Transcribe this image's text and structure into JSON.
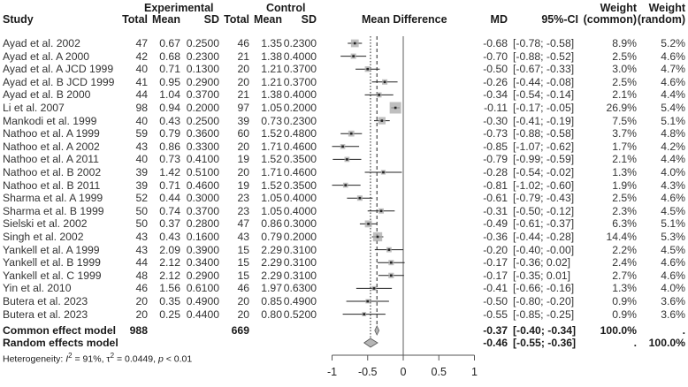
{
  "headers": {
    "study": "Study",
    "experimental": "Experimental",
    "control": "Control",
    "total": "Total",
    "mean": "Mean",
    "sd": "SD",
    "plot": "Mean Difference",
    "md": "MD",
    "ci": "95%-CI",
    "weight": "Weight",
    "weight_common": "(common)",
    "weight_random": "(random)"
  },
  "studies": [
    {
      "study": "Ayad et al. 2002",
      "e_total": "47",
      "e_mean": "0.67",
      "e_sd": "0.2500",
      "c_total": "46",
      "c_mean": "1.35",
      "c_sd": "0.2300",
      "md": "-0.68",
      "ci": "[-0.78; -0.58]",
      "w_common": "8.9%",
      "w_random": "5.2%"
    },
    {
      "study": "Ayad et al. A 2000",
      "e_total": "42",
      "e_mean": "0.68",
      "e_sd": "0.2300",
      "c_total": "21",
      "c_mean": "1.38",
      "c_sd": "0.4000",
      "md": "-0.70",
      "ci": "[-0.88; -0.52]",
      "w_common": "2.5%",
      "w_random": "4.6%"
    },
    {
      "study": "Ayad et al. A JCD 1999",
      "e_total": "40",
      "e_mean": "0.71",
      "e_sd": "0.1300",
      "c_total": "20",
      "c_mean": "1.21",
      "c_sd": "0.3700",
      "md": "-0.50",
      "ci": "[-0.67; -0.33]",
      "w_common": "3.0%",
      "w_random": "4.7%"
    },
    {
      "study": "Ayad et al. B JCD 1999",
      "e_total": "41",
      "e_mean": "0.95",
      "e_sd": "0.2900",
      "c_total": "20",
      "c_mean": "1.21",
      "c_sd": "0.3700",
      "md": "-0.26",
      "ci": "[-0.44; -0.08]",
      "w_common": "2.5%",
      "w_random": "4.6%"
    },
    {
      "study": "Ayad et al. B 2000",
      "e_total": "44",
      "e_mean": "1.04",
      "e_sd": "0.3700",
      "c_total": "21",
      "c_mean": "1.38",
      "c_sd": "0.4000",
      "md": "-0.34",
      "ci": "[-0.54; -0.14]",
      "w_common": "2.1%",
      "w_random": "4.4%"
    },
    {
      "study": "Li et al. 2007",
      "e_total": "98",
      "e_mean": "0.94",
      "e_sd": "0.2000",
      "c_total": "97",
      "c_mean": "1.05",
      "c_sd": "0.2000",
      "md": "-0.11",
      "ci": "[-0.17; -0.05]",
      "w_common": "26.9%",
      "w_random": "5.4%"
    },
    {
      "study": "Mankodi et al. 1999",
      "e_total": "40",
      "e_mean": "0.43",
      "e_sd": "0.2500",
      "c_total": "39",
      "c_mean": "0.73",
      "c_sd": "0.2300",
      "md": "-0.30",
      "ci": "[-0.41; -0.19]",
      "w_common": "7.5%",
      "w_random": "5.1%"
    },
    {
      "study": "Nathoo et al. A 1999",
      "e_total": "59",
      "e_mean": "0.79",
      "e_sd": "0.3600",
      "c_total": "60",
      "c_mean": "1.52",
      "c_sd": "0.4800",
      "md": "-0.73",
      "ci": "[-0.88; -0.58]",
      "w_common": "3.7%",
      "w_random": "4.8%"
    },
    {
      "study": "Nathoo et al. A 2002",
      "e_total": "43",
      "e_mean": "0.86",
      "e_sd": "0.3300",
      "c_total": "20",
      "c_mean": "1.71",
      "c_sd": "0.4600",
      "md": "-0.85",
      "ci": "[-1.07; -0.62]",
      "w_common": "1.7%",
      "w_random": "4.2%"
    },
    {
      "study": "Nathoo et al. A 2011",
      "e_total": "40",
      "e_mean": "0.73",
      "e_sd": "0.4100",
      "c_total": "19",
      "c_mean": "1.52",
      "c_sd": "0.3500",
      "md": "-0.79",
      "ci": "[-0.99; -0.59]",
      "w_common": "2.1%",
      "w_random": "4.4%"
    },
    {
      "study": "Nathoo et al. B 2002",
      "e_total": "39",
      "e_mean": "1.42",
      "e_sd": "0.5100",
      "c_total": "20",
      "c_mean": "1.71",
      "c_sd": "0.4600",
      "md": "-0.28",
      "ci": "[-0.54; -0.02]",
      "w_common": "1.3%",
      "w_random": "4.0%"
    },
    {
      "study": "Nathoo et al. B 2011",
      "e_total": "39",
      "e_mean": "0.71",
      "e_sd": "0.4600",
      "c_total": "19",
      "c_mean": "1.52",
      "c_sd": "0.3500",
      "md": "-0.81",
      "ci": "[-1.02; -0.60]",
      "w_common": "1.9%",
      "w_random": "4.3%"
    },
    {
      "study": "Sharma et al. A 1999",
      "e_total": "52",
      "e_mean": "0.44",
      "e_sd": "0.3000",
      "c_total": "23",
      "c_mean": "1.05",
      "c_sd": "0.4000",
      "md": "-0.61",
      "ci": "[-0.79; -0.43]",
      "w_common": "2.5%",
      "w_random": "4.6%"
    },
    {
      "study": "Sharma et al. B 1999",
      "e_total": "50",
      "e_mean": "0.74",
      "e_sd": "0.3700",
      "c_total": "23",
      "c_mean": "1.05",
      "c_sd": "0.4000",
      "md": "-0.31",
      "ci": "[-0.50; -0.12]",
      "w_common": "2.3%",
      "w_random": "4.5%"
    },
    {
      "study": "Sielski et al. 2002",
      "e_total": "50",
      "e_mean": "0.37",
      "e_sd": "0.2800",
      "c_total": "47",
      "c_mean": "0.86",
      "c_sd": "0.3000",
      "md": "-0.49",
      "ci": "[-0.61; -0.37]",
      "w_common": "6.3%",
      "w_random": "5.1%"
    },
    {
      "study": "Singh et al. 2002",
      "e_total": "43",
      "e_mean": "0.43",
      "e_sd": "0.1600",
      "c_total": "43",
      "c_mean": "0.79",
      "c_sd": "0.2000",
      "md": "-0.36",
      "ci": "[-0.44; -0.28]",
      "w_common": "14.4%",
      "w_random": "5.3%"
    },
    {
      "study": "Yankell et al. A 1999",
      "e_total": "43",
      "e_mean": "2.09",
      "e_sd": "0.3900",
      "c_total": "15",
      "c_mean": "2.29",
      "c_sd": "0.3100",
      "md": "-0.20",
      "ci": "[-0.40; -0.00]",
      "w_common": "2.2%",
      "w_random": "4.5%"
    },
    {
      "study": "Yankell et al. B 1999",
      "e_total": "44",
      "e_mean": "2.12",
      "e_sd": "0.3400",
      "c_total": "15",
      "c_mean": "2.29",
      "c_sd": "0.3100",
      "md": "-0.17",
      "ci": "[-0.36; 0.02]",
      "w_common": "2.4%",
      "w_random": "4.6%"
    },
    {
      "study": "Yankell et al. C 1999",
      "e_total": "48",
      "e_mean": "2.12",
      "e_sd": "0.2900",
      "c_total": "15",
      "c_mean": "2.29",
      "c_sd": "0.3100",
      "md": "-0.17",
      "ci": "[-0.35; 0.01]",
      "w_common": "2.7%",
      "w_random": "4.6%"
    },
    {
      "study": "Yin et al. 2010",
      "e_total": "46",
      "e_mean": "1.56",
      "e_sd": "0.6100",
      "c_total": "46",
      "c_mean": "1.97",
      "c_sd": "0.6300",
      "md": "-0.41",
      "ci": "[-0.66; -0.16]",
      "w_common": "1.3%",
      "w_random": "4.0%"
    },
    {
      "study": "Butera et al. 2023",
      "e_total": "20",
      "e_mean": "0.35",
      "e_sd": "0.4900",
      "c_total": "20",
      "c_mean": "0.85",
      "c_sd": "0.4900",
      "md": "-0.50",
      "ci": "[-0.80; -0.20]",
      "w_common": "0.9%",
      "w_random": "3.6%"
    },
    {
      "study": "Butera et al. 2023",
      "e_total": "20",
      "e_mean": "0.25",
      "e_sd": "0.4400",
      "c_total": "20",
      "c_mean": "0.80",
      "c_sd": "0.5200",
      "md": "-0.55",
      "ci": "[-0.85; -0.25]",
      "w_common": "0.9%",
      "w_random": "3.6%"
    }
  ],
  "summary": {
    "common": {
      "label": "Common effect model",
      "e_total": "988",
      "c_total": "669",
      "md": "-0.37",
      "ci": "[-0.40; -0.34]",
      "w_common": "100.0%",
      "w_random": "."
    },
    "random": {
      "label": "Random effects model",
      "md": "-0.46",
      "ci": "[-0.55; -0.36]",
      "w_common": ".",
      "w_random": "100.0%"
    },
    "heterogeneity": {
      "prefix": "Heterogeneity: ",
      "i2_sym": "I",
      "i2_val": " = 91%, ",
      "tau_sym": "τ",
      "tau_val": " = 0.0449, ",
      "p_sym": "p",
      "p_val": " < 0.01",
      "sup": "2"
    }
  },
  "chart_data": {
    "type": "forest",
    "title": "Mean Difference",
    "xlabel": "",
    "x_ticks": [
      "-1",
      "-0.5",
      "0",
      "0.5",
      "1"
    ],
    "xlim": [
      -1,
      1
    ],
    "reference_line": 0,
    "common_effect_line": -0.37,
    "random_effect_line": -0.46,
    "series": [
      {
        "name": "Ayad et al. 2002",
        "md": -0.68,
        "lower": -0.78,
        "upper": -0.58,
        "weight_common": 8.9
      },
      {
        "name": "Ayad et al. A 2000",
        "md": -0.7,
        "lower": -0.88,
        "upper": -0.52,
        "weight_common": 2.5
      },
      {
        "name": "Ayad et al. A JCD 1999",
        "md": -0.5,
        "lower": -0.67,
        "upper": -0.33,
        "weight_common": 3.0
      },
      {
        "name": "Ayad et al. B JCD 1999",
        "md": -0.26,
        "lower": -0.44,
        "upper": -0.08,
        "weight_common": 2.5
      },
      {
        "name": "Ayad et al. B 2000",
        "md": -0.34,
        "lower": -0.54,
        "upper": -0.14,
        "weight_common": 2.1
      },
      {
        "name": "Li et al. 2007",
        "md": -0.11,
        "lower": -0.17,
        "upper": -0.05,
        "weight_common": 26.9
      },
      {
        "name": "Mankodi et al. 1999",
        "md": -0.3,
        "lower": -0.41,
        "upper": -0.19,
        "weight_common": 7.5
      },
      {
        "name": "Nathoo et al. A 1999",
        "md": -0.73,
        "lower": -0.88,
        "upper": -0.58,
        "weight_common": 3.7
      },
      {
        "name": "Nathoo et al. A 2002",
        "md": -0.85,
        "lower": -1.07,
        "upper": -0.62,
        "weight_common": 1.7
      },
      {
        "name": "Nathoo et al. A 2011",
        "md": -0.79,
        "lower": -0.99,
        "upper": -0.59,
        "weight_common": 2.1
      },
      {
        "name": "Nathoo et al. B 2002",
        "md": -0.28,
        "lower": -0.54,
        "upper": -0.02,
        "weight_common": 1.3
      },
      {
        "name": "Nathoo et al. B 2011",
        "md": -0.81,
        "lower": -1.02,
        "upper": -0.6,
        "weight_common": 1.9
      },
      {
        "name": "Sharma et al. A 1999",
        "md": -0.61,
        "lower": -0.79,
        "upper": -0.43,
        "weight_common": 2.5
      },
      {
        "name": "Sharma et al. B 1999",
        "md": -0.31,
        "lower": -0.5,
        "upper": -0.12,
        "weight_common": 2.3
      },
      {
        "name": "Sielski et al. 2002",
        "md": -0.49,
        "lower": -0.61,
        "upper": -0.37,
        "weight_common": 6.3
      },
      {
        "name": "Singh et al. 2002",
        "md": -0.36,
        "lower": -0.44,
        "upper": -0.28,
        "weight_common": 14.4
      },
      {
        "name": "Yankell et al. A 1999",
        "md": -0.2,
        "lower": -0.4,
        "upper": 0.0,
        "weight_common": 2.2
      },
      {
        "name": "Yankell et al. B 1999",
        "md": -0.17,
        "lower": -0.36,
        "upper": 0.02,
        "weight_common": 2.4
      },
      {
        "name": "Yankell et al. C 1999",
        "md": -0.17,
        "lower": -0.35,
        "upper": 0.01,
        "weight_common": 2.7
      },
      {
        "name": "Yin et al. 2010",
        "md": -0.41,
        "lower": -0.66,
        "upper": -0.16,
        "weight_common": 1.3
      },
      {
        "name": "Butera et al. 2023",
        "md": -0.5,
        "lower": -0.8,
        "upper": -0.2,
        "weight_common": 0.9
      },
      {
        "name": "Butera et al. 2023",
        "md": -0.55,
        "lower": -0.85,
        "upper": -0.25,
        "weight_common": 0.9
      }
    ],
    "pooled": [
      {
        "name": "Common effect model",
        "md": -0.37,
        "lower": -0.4,
        "upper": -0.34
      },
      {
        "name": "Random effects model",
        "md": -0.46,
        "lower": -0.55,
        "upper": -0.36
      }
    ]
  }
}
